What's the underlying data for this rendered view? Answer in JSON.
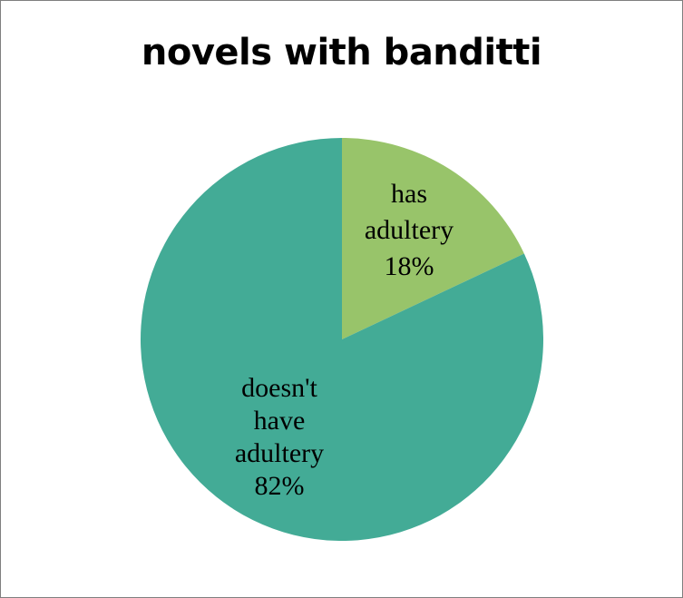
{
  "chart_data": {
    "type": "pie",
    "title": "novels with banditti",
    "slices": [
      {
        "label_lines": [
          "has",
          "adultery"
        ],
        "percent_label": "18%",
        "value": 18,
        "color": "#98c46a"
      },
      {
        "label_lines": [
          "doesn't",
          "have",
          "adultery"
        ],
        "percent_label": "82%",
        "value": 82,
        "color": "#43ab96"
      }
    ],
    "start_angle": "12 o'clock",
    "direction": "clockwise",
    "legend": "none"
  }
}
